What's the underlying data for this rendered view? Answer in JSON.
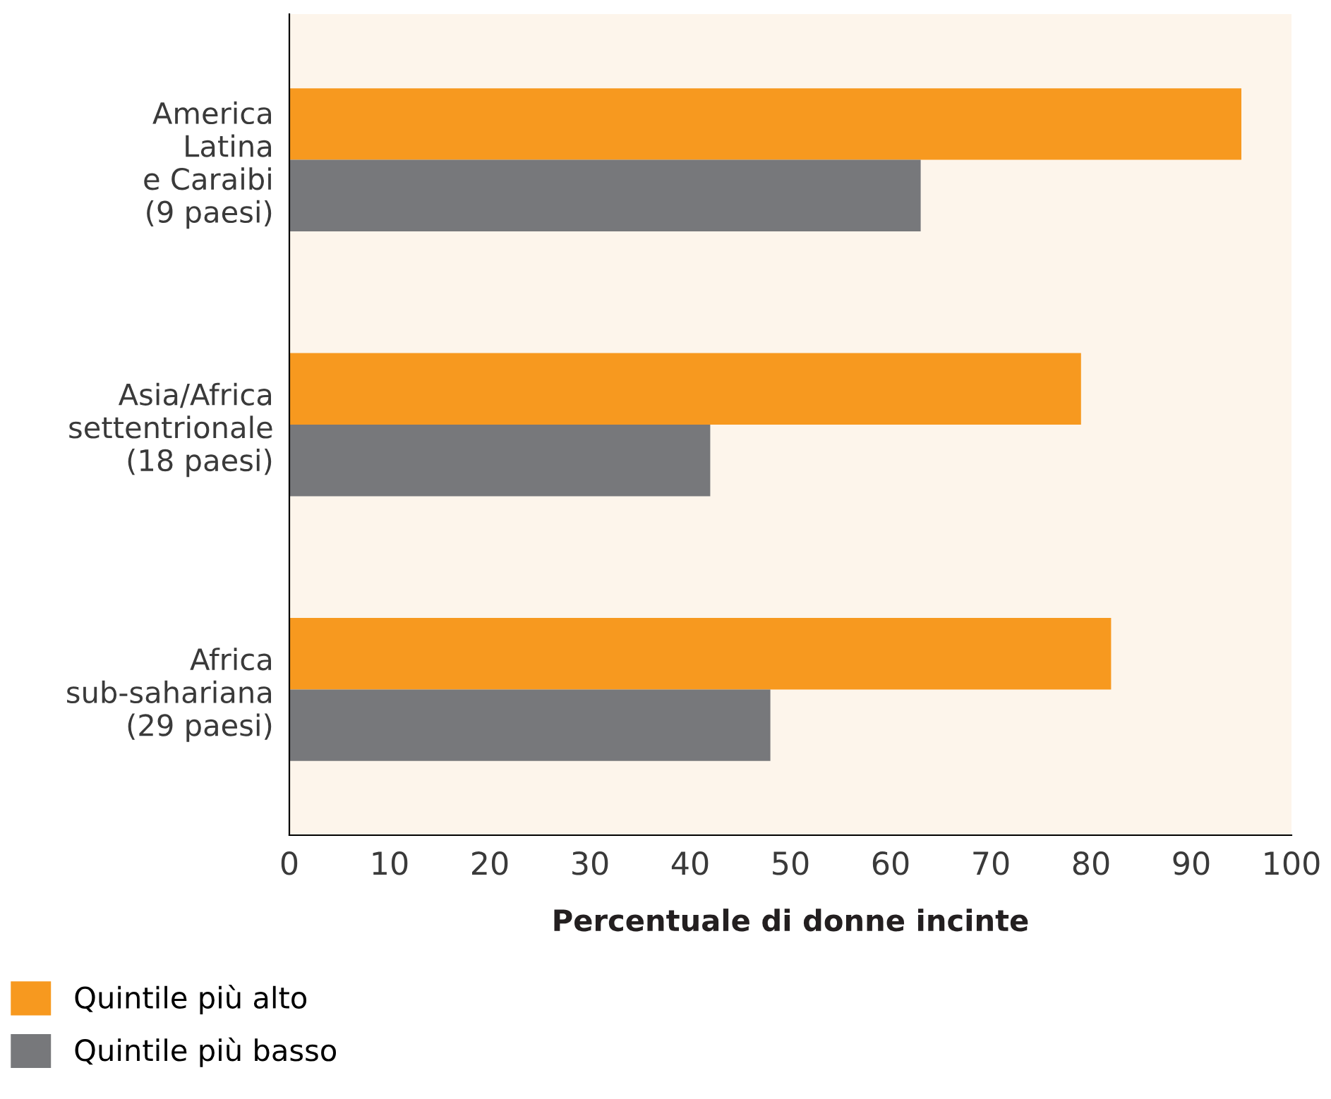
{
  "chart_data": {
    "type": "bar",
    "orientation": "horizontal",
    "categories": [
      "America\nLatina\ne Caraibi\n(9 paesi)",
      "Asia/Africa\nsettentrionale\n(18 paesi)",
      "Africa\nsub-sahariana\n(29 paesi)"
    ],
    "series": [
      {
        "name": "Quintile più alto",
        "color": "#f7991f",
        "values": [
          95,
          79,
          82
        ]
      },
      {
        "name": "Quintile più basso",
        "color": "#77787b",
        "values": [
          63,
          42,
          48
        ]
      }
    ],
    "xlabel": "Percentuale di donne incinte",
    "xlim": [
      0,
      100
    ],
    "xticks": [
      0,
      10,
      20,
      30,
      40,
      50,
      60,
      70,
      80,
      90,
      100
    ],
    "grid": false,
    "legend": "bottom"
  }
}
